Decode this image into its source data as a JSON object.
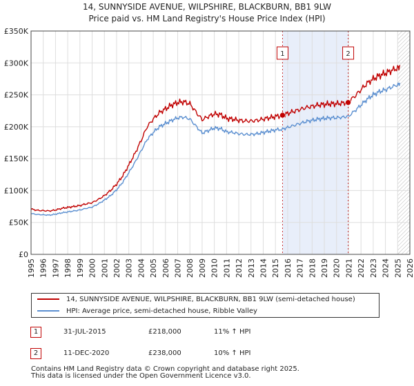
{
  "chart_data": {
    "type": "line",
    "title": "14, SUNNYSIDE AVENUE, WILPSHIRE, BLACKBURN, BB1 9LW",
    "subtitle": "Price paid vs. HM Land Registry's House Price Index (HPI)",
    "xlabel": "",
    "ylabel": "",
    "xlim": [
      1995,
      2026
    ],
    "ylim": [
      0,
      350000
    ],
    "x_ticks": [
      "1995",
      "1996",
      "1997",
      "1998",
      "1999",
      "2000",
      "2001",
      "2002",
      "2003",
      "2004",
      "2005",
      "2006",
      "2007",
      "2008",
      "2009",
      "2010",
      "2011",
      "2012",
      "2013",
      "2014",
      "2015",
      "2016",
      "2017",
      "2018",
      "2019",
      "2020",
      "2021",
      "2022",
      "2023",
      "2024",
      "2025",
      "2026"
    ],
    "y_ticks": [
      {
        "value": 0,
        "label": "£0"
      },
      {
        "value": 50000,
        "label": "£50K"
      },
      {
        "value": 100000,
        "label": "£100K"
      },
      {
        "value": 150000,
        "label": "£150K"
      },
      {
        "value": 200000,
        "label": "£200K"
      },
      {
        "value": 250000,
        "label": "£250K"
      },
      {
        "value": 300000,
        "label": "£300K"
      },
      {
        "value": 350000,
        "label": "£350K"
      }
    ],
    "grid": true,
    "shaded_period": {
      "start": 2015.58,
      "end": 2020.95,
      "color": "#e8eefa"
    },
    "forecast_hatch_start": 2025.0,
    "colors": {
      "property": "#c00000",
      "hpi": "#5b8fd0",
      "grid": "#dddddd",
      "annotation": "#c00000"
    },
    "series": [
      {
        "name": "14, SUNNYSIDE AVENUE, WILPSHIRE, BLACKBURN, BB1 9LW (semi-detached house)",
        "color": "#c00000",
        "points": [
          [
            1995.0,
            71000
          ],
          [
            1995.5,
            69000
          ],
          [
            1996.0,
            68500
          ],
          [
            1996.5,
            68000
          ],
          [
            1997.0,
            69500
          ],
          [
            1997.5,
            72000
          ],
          [
            1998.0,
            73500
          ],
          [
            1998.5,
            75000
          ],
          [
            1999.0,
            76500
          ],
          [
            1999.5,
            79000
          ],
          [
            2000.0,
            81000
          ],
          [
            2000.5,
            86000
          ],
          [
            2001.0,
            92000
          ],
          [
            2001.5,
            100000
          ],
          [
            2002.0,
            110000
          ],
          [
            2002.5,
            123000
          ],
          [
            2003.0,
            140000
          ],
          [
            2003.5,
            158000
          ],
          [
            2004.0,
            178000
          ],
          [
            2004.5,
            200000
          ],
          [
            2005.0,
            212000
          ],
          [
            2005.5,
            222000
          ],
          [
            2006.0,
            228000
          ],
          [
            2006.5,
            234000
          ],
          [
            2007.0,
            238000
          ],
          [
            2007.5,
            239000
          ],
          [
            2008.0,
            236000
          ],
          [
            2008.5,
            223000
          ],
          [
            2009.0,
            211000
          ],
          [
            2009.5,
            216000
          ],
          [
            2010.0,
            220000
          ],
          [
            2010.5,
            219000
          ],
          [
            2011.0,
            213000
          ],
          [
            2011.5,
            212000
          ],
          [
            2012.0,
            210000
          ],
          [
            2012.5,
            209000
          ],
          [
            2013.0,
            209000
          ],
          [
            2013.5,
            210000
          ],
          [
            2014.0,
            212000
          ],
          [
            2014.5,
            214000
          ],
          [
            2015.0,
            216000
          ],
          [
            2015.58,
            218000
          ],
          [
            2016.0,
            221000
          ],
          [
            2016.5,
            224000
          ],
          [
            2017.0,
            227000
          ],
          [
            2017.5,
            230000
          ],
          [
            2018.0,
            232000
          ],
          [
            2018.5,
            234000
          ],
          [
            2019.0,
            235000
          ],
          [
            2019.5,
            236000
          ],
          [
            2020.0,
            236000
          ],
          [
            2020.5,
            237000
          ],
          [
            2020.95,
            238000
          ],
          [
            2021.5,
            248000
          ],
          [
            2022.0,
            258000
          ],
          [
            2022.5,
            268000
          ],
          [
            2023.0,
            275000
          ],
          [
            2023.5,
            280000
          ],
          [
            2024.0,
            284000
          ],
          [
            2024.5,
            288000
          ],
          [
            2025.0,
            292000
          ],
          [
            2025.2,
            295000
          ]
        ]
      },
      {
        "name": "HPI: Average price, semi-detached house, Ribble Valley",
        "color": "#5b8fd0",
        "points": [
          [
            1995.0,
            64000
          ],
          [
            1995.5,
            62500
          ],
          [
            1996.0,
            62000
          ],
          [
            1996.5,
            61500
          ],
          [
            1997.0,
            63000
          ],
          [
            1997.5,
            65000
          ],
          [
            1998.0,
            66500
          ],
          [
            1998.5,
            68000
          ],
          [
            1999.0,
            69500
          ],
          [
            1999.5,
            72000
          ],
          [
            2000.0,
            74000
          ],
          [
            2000.5,
            79000
          ],
          [
            2001.0,
            85000
          ],
          [
            2001.5,
            92000
          ],
          [
            2002.0,
            101000
          ],
          [
            2002.5,
            113000
          ],
          [
            2003.0,
            128000
          ],
          [
            2003.5,
            144000
          ],
          [
            2004.0,
            162000
          ],
          [
            2004.5,
            180000
          ],
          [
            2005.0,
            191000
          ],
          [
            2005.5,
            200000
          ],
          [
            2006.0,
            205000
          ],
          [
            2006.5,
            210000
          ],
          [
            2007.0,
            214000
          ],
          [
            2007.5,
            215000
          ],
          [
            2008.0,
            212000
          ],
          [
            2008.5,
            201000
          ],
          [
            2009.0,
            190000
          ],
          [
            2009.5,
            194000
          ],
          [
            2010.0,
            198000
          ],
          [
            2010.5,
            197000
          ],
          [
            2011.0,
            192000
          ],
          [
            2011.5,
            191000
          ],
          [
            2012.0,
            189000
          ],
          [
            2012.5,
            188000
          ],
          [
            2013.0,
            188000
          ],
          [
            2013.5,
            189000
          ],
          [
            2014.0,
            191000
          ],
          [
            2014.5,
            193000
          ],
          [
            2015.0,
            195000
          ],
          [
            2015.58,
            196000
          ],
          [
            2016.0,
            199000
          ],
          [
            2016.5,
            202000
          ],
          [
            2017.0,
            205000
          ],
          [
            2017.5,
            208000
          ],
          [
            2018.0,
            210000
          ],
          [
            2018.5,
            212000
          ],
          [
            2019.0,
            213000
          ],
          [
            2019.5,
            214000
          ],
          [
            2020.0,
            214000
          ],
          [
            2020.5,
            215000
          ],
          [
            2020.95,
            216000
          ],
          [
            2021.5,
            225000
          ],
          [
            2022.0,
            234000
          ],
          [
            2022.5,
            243000
          ],
          [
            2023.0,
            250000
          ],
          [
            2023.5,
            255000
          ],
          [
            2024.0,
            258000
          ],
          [
            2024.5,
            262000
          ],
          [
            2025.0,
            266000
          ],
          [
            2025.2,
            268000
          ]
        ]
      }
    ],
    "annotations": [
      {
        "id": "1",
        "x": 2015.58,
        "y": 218000,
        "date": "31-JUL-2015",
        "price": "£218,000",
        "hpi_change": "11% ↑ HPI"
      },
      {
        "id": "2",
        "x": 2020.95,
        "y": 238000,
        "date": "11-DEC-2020",
        "price": "£238,000",
        "hpi_change": "10% ↑ HPI"
      }
    ]
  },
  "legend": {
    "property_label": "14, SUNNYSIDE AVENUE, WILPSHIRE, BLACKBURN, BB1 9LW (semi-detached house)",
    "hpi_label": "HPI: Average price, semi-detached house, Ribble Valley"
  },
  "footer": {
    "line1": "Contains HM Land Registry data © Crown copyright and database right 2025.",
    "line2": "This data is licensed under the Open Government Licence v3.0."
  }
}
